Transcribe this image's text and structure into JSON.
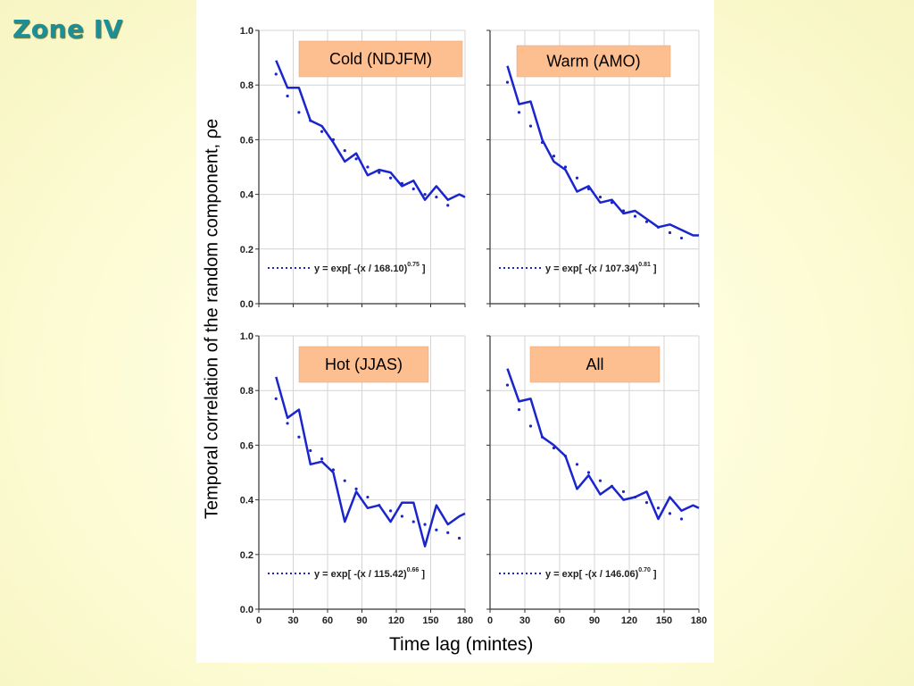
{
  "slide": {
    "title": "Zone IV",
    "y_axis_title": "Temporal correlation of the random component, ρe",
    "x_axis_title": "Time lag (mintes)"
  },
  "colors": {
    "title": "#1a8f99",
    "series_line": "#1a25cc",
    "fit_dots": "#1a25cc",
    "label_box": "#fdbf90",
    "grid": "#d4d4d4"
  },
  "chart_data": [
    {
      "type": "line",
      "panel_label": "Cold (NDJFM)",
      "xlim": [
        0,
        180
      ],
      "ylim": [
        0.0,
        1.0
      ],
      "x_ticks": [
        0,
        30,
        60,
        90,
        120,
        150,
        180
      ],
      "y_ticks": [
        "0.0",
        "0.2",
        "0.4",
        "0.6",
        "0.8",
        "1.0"
      ],
      "grid": true,
      "series": [
        {
          "style": "solid",
          "x": [
            15,
            25,
            35,
            45,
            55,
            65,
            75,
            85,
            95,
            105,
            115,
            125,
            135,
            145,
            155,
            165,
            175,
            180
          ],
          "y": [
            0.89,
            0.79,
            0.79,
            0.67,
            0.65,
            0.59,
            0.52,
            0.55,
            0.47,
            0.49,
            0.48,
            0.43,
            0.45,
            0.38,
            0.43,
            0.38,
            0.4,
            0.39
          ]
        },
        {
          "name": "y = exp[ -(x / 168.10)^0.75 ]",
          "style": "dotted",
          "x": [
            15,
            25,
            35,
            45,
            55,
            65,
            75,
            85,
            95,
            105,
            115,
            125,
            135,
            145,
            155,
            165
          ],
          "y": [
            0.84,
            0.76,
            0.7,
            0.67,
            0.63,
            0.6,
            0.56,
            0.53,
            0.5,
            0.48,
            0.46,
            0.44,
            0.42,
            0.4,
            0.39,
            0.36
          ]
        }
      ],
      "legend": {
        "prefix": "y = exp[ -(x / 168.10)",
        "exponent": "0.75",
        "suffix": " ]"
      }
    },
    {
      "type": "line",
      "panel_label": "Warm (AMO)",
      "xlim": [
        0,
        180
      ],
      "ylim": [
        0.0,
        1.0
      ],
      "x_ticks": [
        0,
        30,
        60,
        90,
        120,
        150,
        180
      ],
      "y_ticks": [
        "0.0",
        "0.2",
        "0.4",
        "0.6",
        "0.8",
        "1.0"
      ],
      "grid": true,
      "series": [
        {
          "style": "solid",
          "x": [
            15,
            25,
            35,
            45,
            55,
            65,
            75,
            85,
            95,
            105,
            115,
            125,
            135,
            145,
            155,
            165,
            175,
            180
          ],
          "y": [
            0.87,
            0.73,
            0.74,
            0.6,
            0.52,
            0.49,
            0.41,
            0.43,
            0.37,
            0.38,
            0.33,
            0.34,
            0.31,
            0.28,
            0.29,
            0.27,
            0.25,
            0.25
          ]
        },
        {
          "name": "y = exp[ -(x / 107.34)^0.81 ]",
          "style": "dotted",
          "x": [
            15,
            25,
            35,
            45,
            55,
            65,
            75,
            85,
            95,
            105,
            115,
            125,
            135,
            145,
            155,
            165
          ],
          "y": [
            0.81,
            0.7,
            0.65,
            0.59,
            0.54,
            0.5,
            0.46,
            0.42,
            0.39,
            0.37,
            0.34,
            0.32,
            0.3,
            0.28,
            0.26,
            0.24
          ]
        }
      ],
      "legend": {
        "prefix": "y = exp[ -(x / 107.34)",
        "exponent": "0.81",
        "suffix": " ]"
      }
    },
    {
      "type": "line",
      "panel_label": "Hot (JJAS)",
      "xlim": [
        0,
        180
      ],
      "ylim": [
        0.0,
        1.0
      ],
      "x_ticks": [
        0,
        30,
        60,
        90,
        120,
        150,
        180
      ],
      "y_ticks": [
        "0.0",
        "0.2",
        "0.4",
        "0.6",
        "0.8",
        "1.0"
      ],
      "grid": true,
      "series": [
        {
          "style": "solid",
          "x": [
            15,
            25,
            35,
            45,
            55,
            65,
            75,
            85,
            95,
            105,
            115,
            125,
            135,
            145,
            155,
            165,
            175,
            180
          ],
          "y": [
            0.85,
            0.7,
            0.73,
            0.53,
            0.54,
            0.5,
            0.32,
            0.43,
            0.37,
            0.38,
            0.32,
            0.39,
            0.39,
            0.23,
            0.38,
            0.31,
            0.34,
            0.35
          ]
        },
        {
          "name": "y = exp[ -(x / 115.42)^0.66 ]",
          "style": "dotted",
          "x": [
            15,
            25,
            35,
            45,
            55,
            65,
            75,
            85,
            95,
            105,
            115,
            125,
            135,
            145,
            155,
            165,
            175
          ],
          "y": [
            0.77,
            0.68,
            0.63,
            0.58,
            0.55,
            0.51,
            0.47,
            0.44,
            0.41,
            0.38,
            0.36,
            0.34,
            0.32,
            0.31,
            0.29,
            0.28,
            0.26
          ]
        }
      ],
      "legend": {
        "prefix": "y = exp[ -(x / 115.42)",
        "exponent": "0.66",
        "suffix": " ]"
      }
    },
    {
      "type": "line",
      "panel_label": "All",
      "xlim": [
        0,
        180
      ],
      "ylim": [
        0.0,
        1.0
      ],
      "x_ticks": [
        0,
        30,
        60,
        90,
        120,
        150,
        180
      ],
      "y_ticks": [
        "0.0",
        "0.2",
        "0.4",
        "0.6",
        "0.8",
        "1.0"
      ],
      "grid": true,
      "series": [
        {
          "style": "solid",
          "x": [
            15,
            25,
            35,
            45,
            55,
            65,
            75,
            85,
            95,
            105,
            115,
            125,
            135,
            145,
            155,
            165,
            175,
            180
          ],
          "y": [
            0.88,
            0.76,
            0.77,
            0.63,
            0.6,
            0.56,
            0.44,
            0.49,
            0.42,
            0.45,
            0.4,
            0.41,
            0.43,
            0.33,
            0.41,
            0.36,
            0.38,
            0.37
          ]
        },
        {
          "name": "y = exp[ -(x / 146.06)^0.70 ]",
          "style": "dotted",
          "x": [
            15,
            25,
            35,
            45,
            55,
            65,
            75,
            85,
            95,
            105,
            115,
            125,
            135,
            145,
            155,
            165
          ],
          "y": [
            0.82,
            0.73,
            0.67,
            0.63,
            0.59,
            0.56,
            0.53,
            0.5,
            0.47,
            0.45,
            0.43,
            0.41,
            0.39,
            0.37,
            0.35,
            0.33
          ]
        }
      ],
      "legend": {
        "prefix": "y = exp[ -(x / 146.06)",
        "exponent": "0.70",
        "suffix": " ]"
      }
    }
  ]
}
